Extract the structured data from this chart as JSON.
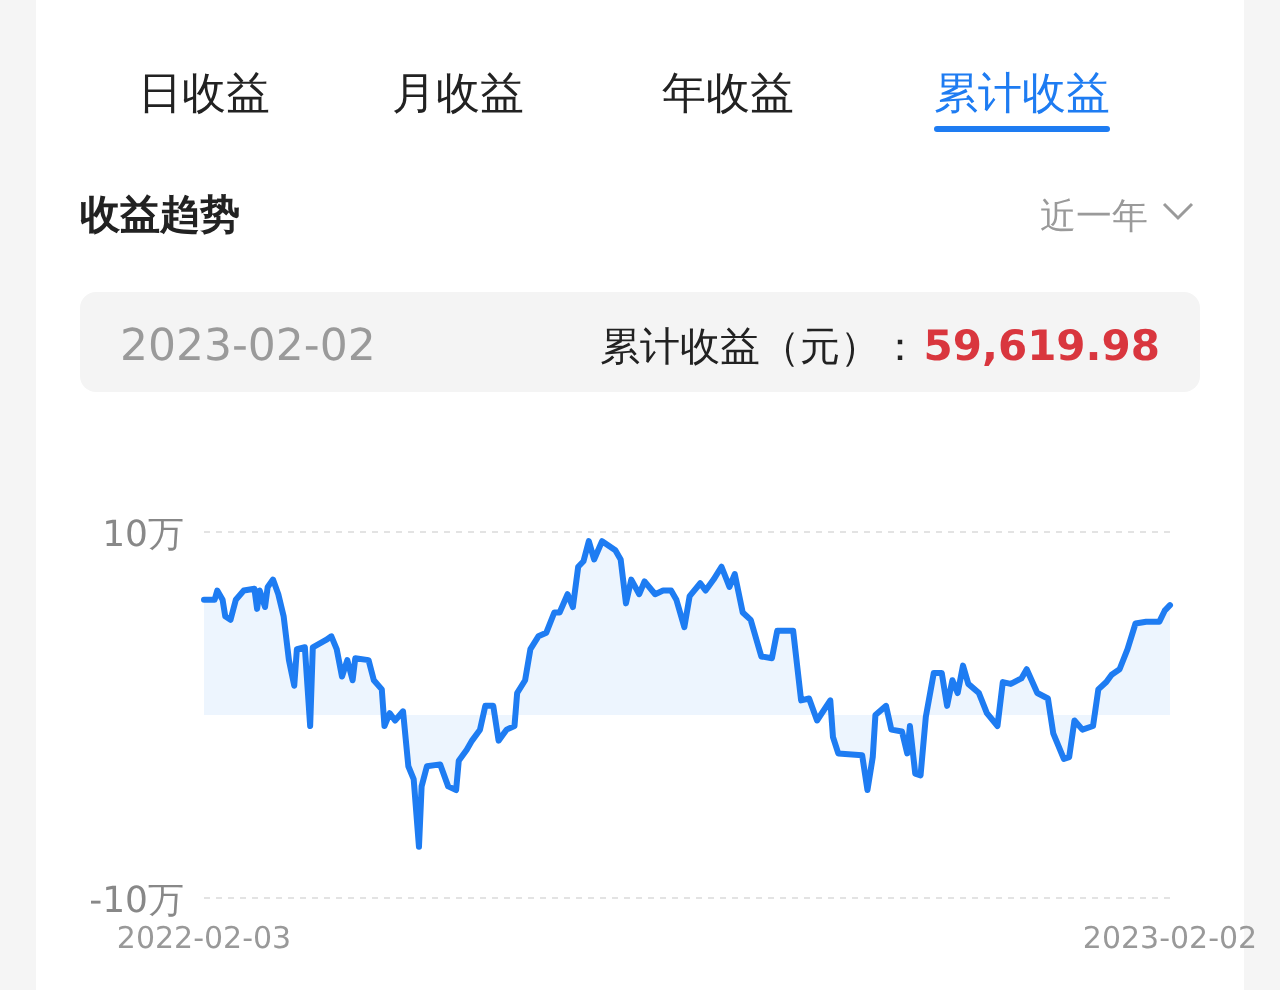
{
  "chart_data": {
    "type": "area",
    "title": "收益趋势",
    "subtitle": "近一年",
    "annotations": [
      "日收益",
      "月收益",
      "年收益",
      "累计收益",
      "2023-02-02",
      "累计收益（元）：",
      "59,619.98"
    ],
    "x": [
      "2022-02-03",
      "2022-02-07",
      "2022-02-08",
      "2022-02-10",
      "2022-02-11",
      "2022-02-13",
      "2022-02-15",
      "2022-02-18",
      "2022-02-22",
      "2022-02-23",
      "2022-02-24",
      "2022-02-26",
      "2022-02-27",
      "2022-03-01",
      "2022-03-03",
      "2022-03-05",
      "2022-03-07",
      "2022-03-09",
      "2022-03-10",
      "2022-03-13",
      "2022-03-15",
      "2022-03-16",
      "2022-03-21",
      "2022-03-23",
      "2022-03-25",
      "2022-03-27",
      "2022-03-29",
      "2022-03-31",
      "2022-04-01",
      "2022-04-06",
      "2022-04-08",
      "2022-04-11",
      "2022-04-12",
      "2022-04-14",
      "2022-04-16",
      "2022-04-19",
      "2022-04-21",
      "2022-04-23",
      "2022-04-25",
      "2022-04-26",
      "2022-04-28",
      "2022-05-03",
      "2022-05-06",
      "2022-05-09",
      "2022-05-10",
      "2022-05-13",
      "2022-05-15",
      "2022-05-18",
      "2022-05-20",
      "2022-05-23",
      "2022-05-25",
      "2022-05-28",
      "2022-05-31",
      "2022-06-01",
      "2022-06-04",
      "2022-06-06",
      "2022-06-09",
      "2022-06-12",
      "2022-06-15",
      "2022-06-17",
      "2022-06-20",
      "2022-06-22",
      "2022-06-24",
      "2022-06-26",
      "2022-06-28",
      "2022-06-30",
      "2022-07-03",
      "2022-07-08",
      "2022-07-10",
      "2022-07-12",
      "2022-07-14",
      "2022-07-17",
      "2022-07-19",
      "2022-07-23",
      "2022-07-26",
      "2022-07-29",
      "2022-07-31",
      "2022-08-03",
      "2022-08-05",
      "2022-08-09",
      "2022-08-11",
      "2022-08-14",
      "2022-08-17",
      "2022-08-20",
      "2022-08-22",
      "2022-08-25",
      "2022-08-28",
      "2022-09-01",
      "2022-09-05",
      "2022-09-07",
      "2022-09-13",
      "2022-09-16",
      "2022-09-19",
      "2022-09-22",
      "2022-09-27",
      "2022-09-28",
      "2022-09-30",
      "2022-10-09",
      "2022-10-11",
      "2022-10-13",
      "2022-10-14",
      "2022-10-18",
      "2022-10-20",
      "2022-10-24",
      "2022-10-26",
      "2022-10-27",
      "2022-10-29",
      "2022-10-31",
      "2022-11-02",
      "2022-11-05",
      "2022-11-08",
      "2022-11-10",
      "2022-11-12",
      "2022-11-14",
      "2022-11-16",
      "2022-11-18",
      "2022-11-22",
      "2022-11-25",
      "2022-11-29",
      "2022-12-01",
      "2022-12-04",
      "2022-12-08",
      "2022-12-10",
      "2022-12-14",
      "2022-12-18",
      "2022-12-20",
      "2022-12-24",
      "2022-12-26",
      "2022-12-28",
      "2022-12-31",
      "2023-01-04",
      "2023-01-06",
      "2023-01-09",
      "2023-01-11",
      "2023-01-14",
      "2023-01-17",
      "2023-01-20",
      "2023-01-24",
      "2023-01-29",
      "2023-01-31",
      "2023-02-02"
    ],
    "series": [
      {
        "color": "#1e7cf2",
        "values": [
          6.3,
          6.3,
          6.8,
          6.3,
          5.4,
          5.2,
          6.3,
          6.8,
          6.9,
          5.8,
          6.8,
          5.9,
          7.0,
          7.4,
          6.6,
          5.4,
          3.0,
          1.6,
          3.6,
          3.7,
          -0.6,
          3.7,
          4.1,
          4.3,
          3.6,
          2.1,
          3.0,
          1.9,
          3.1,
          3.0,
          1.9,
          1.4,
          -0.6,
          0.1,
          -0.3,
          0.2,
          -2.8,
          -3.5,
          -7.2,
          -3.9,
          -2.8,
          -2.7,
          -3.9,
          -4.1,
          -2.5,
          -1.9,
          -1.4,
          -0.8,
          0.5,
          0.5,
          -1.4,
          -0.8,
          -0.6,
          1.2,
          1.9,
          3.6,
          4.3,
          4.5,
          5.6,
          5.6,
          6.6,
          5.9,
          8.1,
          8.4,
          9.5,
          8.5,
          9.5,
          9.0,
          8.5,
          6.1,
          7.4,
          6.6,
          7.3,
          6.6,
          6.8,
          6.8,
          6.3,
          4.8,
          6.5,
          7.2,
          6.8,
          7.4,
          8.1,
          7.0,
          7.7,
          5.6,
          5.2,
          3.2,
          3.1,
          4.6,
          4.6,
          0.8,
          0.9,
          -0.3,
          0.8,
          -1.2,
          -2.1,
          -2.2,
          -4.1,
          -2.3,
          0,
          0.5,
          -0.8,
          -0.9,
          -2.1,
          -0.6,
          -3.2,
          -3.3,
          -0.1,
          2.3,
          2.3,
          0.5,
          1.9,
          1.2,
          2.7,
          1.7,
          1.2,
          0.1,
          -0.6,
          1.8,
          1.7,
          2.0,
          2.5,
          1.2,
          0.9,
          -1.0,
          -2.4,
          -2.3,
          -0.3,
          -0.8,
          -0.6,
          1.4,
          1.8,
          2.2,
          2.5,
          3.6,
          5.0,
          5.1,
          5.1,
          5.7,
          6.0
        ]
      }
    ],
    "xlim": [
      "2022-02-03",
      "2023-02-02"
    ],
    "xticks": [
      "2022-02-03",
      "2023-02-02"
    ],
    "ylim": [
      -10,
      10
    ],
    "yticks": [
      {
        "value": 10,
        "label": "10万"
      },
      {
        "value": -10,
        "label": "-10万"
      }
    ],
    "grid": "y"
  }
}
